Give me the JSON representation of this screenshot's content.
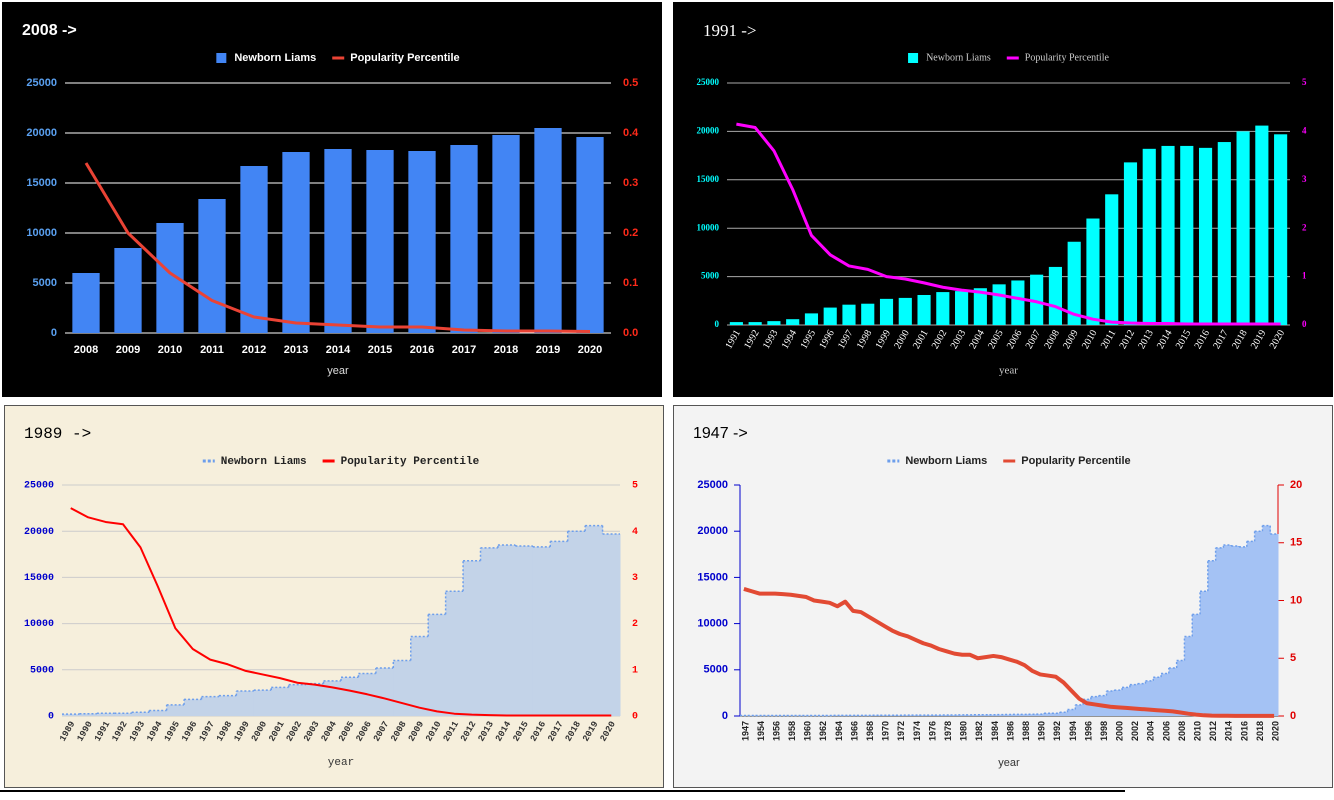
{
  "chart_data": [
    {
      "type": "combo",
      "title": "2008 ->",
      "x_label": "year",
      "categories": [
        "2008",
        "2009",
        "2010",
        "2011",
        "2012",
        "2013",
        "2014",
        "2015",
        "2016",
        "2017",
        "2018",
        "2019",
        "2020"
      ],
      "series": [
        {
          "name": "Newborn Liams",
          "type": "bar",
          "color": "#4285f4",
          "values": [
            6000,
            8500,
            11000,
            13400,
            16700,
            18100,
            18400,
            18300,
            18200,
            18800,
            19800,
            20500,
            19600
          ]
        },
        {
          "name": "Popularity Percentile",
          "type": "line",
          "axis": "y2",
          "color": "#ea4335",
          "values": [
            0.34,
            0.2,
            0.12,
            0.065,
            0.032,
            0.02,
            0.016,
            0.012,
            0.012,
            0.006,
            0.004,
            0.004,
            0.003
          ]
        }
      ],
      "ylim": [
        0,
        25000
      ],
      "yticks": [
        0,
        5000,
        10000,
        15000,
        20000,
        25000
      ],
      "y2lim": [
        0,
        0.5
      ],
      "y2ticks": [
        {
          "value": 0,
          "label": "0.0"
        },
        0.1,
        0.2,
        0.3,
        0.4,
        0.5
      ],
      "grid": true,
      "legend": "top"
    },
    {
      "type": "combo",
      "title": "1991 ->",
      "x_label": "year",
      "categories": [
        "1991",
        "1992",
        "1993",
        "1994",
        "1995",
        "1996",
        "1997",
        "1998",
        "1999",
        "2000",
        "2001",
        "2002",
        "2003",
        "2004",
        "2005",
        "2006",
        "2007",
        "2008",
        "2009",
        "2010",
        "2011",
        "2012",
        "2013",
        "2014",
        "2015",
        "2016",
        "2017",
        "2018",
        "2019",
        "2020"
      ],
      "series": [
        {
          "name": "Newborn Liams",
          "type": "bar",
          "color": "#00ffff",
          "values": [
            300,
            300,
            400,
            600,
            1200,
            1800,
            2100,
            2200,
            2700,
            2800,
            3100,
            3400,
            3500,
            3800,
            4200,
            4600,
            5200,
            6000,
            8600,
            11000,
            13500,
            16800,
            18200,
            18500,
            18500,
            18300,
            18900,
            20000,
            20600,
            19700
          ]
        },
        {
          "name": "Popularity Percentile",
          "type": "line",
          "axis": "y2",
          "color": "#ff00ff",
          "values": [
            4.15,
            4.08,
            3.6,
            2.8,
            1.85,
            1.45,
            1.22,
            1.15,
            1.0,
            0.95,
            0.87,
            0.78,
            0.72,
            0.68,
            0.62,
            0.55,
            0.48,
            0.38,
            0.22,
            0.12,
            0.06,
            0.04,
            0.03,
            0.03,
            0.02,
            0.02,
            0.02,
            0.02,
            0.02,
            0.02
          ]
        }
      ],
      "ylim": [
        0,
        25000
      ],
      "yticks": [
        0,
        5000,
        10000,
        15000,
        20000,
        25000
      ],
      "y2lim": [
        0,
        5
      ],
      "y2ticks": [
        0,
        1,
        2,
        3,
        4,
        5
      ],
      "grid": true,
      "legend": "top"
    },
    {
      "type": "combo",
      "title": "1989 ->",
      "x_label": "year",
      "categories": [
        "1989",
        "1990",
        "1991",
        "1992",
        "1993",
        "1994",
        "1995",
        "1996",
        "1997",
        "1998",
        "1999",
        "2000",
        "2001",
        "2002",
        "2003",
        "2004",
        "2005",
        "2006",
        "2007",
        "2008",
        "2009",
        "2010",
        "2011",
        "2012",
        "2013",
        "2014",
        "2015",
        "2016",
        "2017",
        "2018",
        "2019",
        "2020"
      ],
      "series": [
        {
          "name": "Newborn Liams",
          "type": "steparea",
          "color": "#c3d3e8",
          "line_color": "#6d9eeb",
          "values": [
            200,
            250,
            300,
            300,
            400,
            600,
            1200,
            1800,
            2100,
            2200,
            2700,
            2800,
            3100,
            3400,
            3500,
            3800,
            4200,
            4600,
            5200,
            6000,
            8600,
            11000,
            13500,
            16800,
            18200,
            18500,
            18400,
            18300,
            18900,
            20000,
            20600,
            19700
          ]
        },
        {
          "name": "Popularity Percentile",
          "type": "line",
          "axis": "y2",
          "color": "#ff0000",
          "values": [
            4.5,
            4.3,
            4.2,
            4.15,
            3.65,
            2.8,
            1.9,
            1.45,
            1.22,
            1.12,
            0.98,
            0.9,
            0.82,
            0.72,
            0.68,
            0.62,
            0.55,
            0.47,
            0.38,
            0.28,
            0.18,
            0.1,
            0.05,
            0.03,
            0.02,
            0.01,
            0.01,
            0.01,
            0.01,
            0.01,
            0.01,
            0.01
          ]
        }
      ],
      "ylim": [
        0,
        25000
      ],
      "yticks": [
        0,
        5000,
        10000,
        15000,
        20000,
        25000
      ],
      "y2lim": [
        0,
        5
      ],
      "y2ticks": [
        0,
        1,
        2,
        3,
        4,
        5
      ],
      "grid": true,
      "legend": "top"
    },
    {
      "type": "combo",
      "title": "1947 ->",
      "x_label": "year",
      "categories": [
        "1947",
        null,
        "1954",
        null,
        "1956",
        null,
        "1958",
        null,
        "1960",
        null,
        "1962",
        null,
        "1964",
        null,
        "1966",
        null,
        "1968",
        null,
        "1970",
        null,
        "1972",
        null,
        "1974",
        null,
        "1976",
        null,
        "1978",
        null,
        "1980",
        null,
        "1982",
        null,
        "1984",
        null,
        "1986",
        null,
        "1988",
        null,
        "1990",
        null,
        "1992",
        null,
        "1994",
        null,
        "1996",
        null,
        "1998",
        null,
        "2000",
        null,
        "2002",
        null,
        "2004",
        null,
        "2006",
        null,
        "2008",
        null,
        "2010",
        null,
        "2012",
        null,
        "2014",
        null,
        "2016",
        null,
        "2018",
        null,
        "2020"
      ],
      "series": [
        {
          "name": "Newborn Liams",
          "type": "steparea",
          "color": "#a4c2f4",
          "line_color": "#6d9eeb",
          "values": [
            50,
            50,
            50,
            50,
            50,
            50,
            50,
            50,
            60,
            60,
            60,
            60,
            70,
            70,
            70,
            70,
            70,
            80,
            80,
            80,
            80,
            90,
            90,
            90,
            100,
            100,
            110,
            110,
            120,
            120,
            130,
            130,
            140,
            150,
            160,
            170,
            180,
            190,
            200,
            300,
            300,
            400,
            700,
            1200,
            1800,
            2100,
            2200,
            2700,
            2800,
            3100,
            3400,
            3500,
            3800,
            4200,
            4600,
            5200,
            6000,
            8600,
            11000,
            13500,
            16800,
            18200,
            18500,
            18400,
            18300,
            18900,
            20000,
            20600,
            19700
          ]
        },
        {
          "name": "Popularity Percentile",
          "type": "line",
          "axis": "y2",
          "color": "#e24a33",
          "values": [
            11.0,
            10.8,
            10.6,
            10.6,
            10.6,
            10.55,
            10.5,
            10.4,
            10.3,
            10.0,
            9.9,
            9.8,
            9.5,
            9.9,
            9.1,
            9.0,
            8.6,
            8.2,
            7.8,
            7.4,
            7.1,
            6.9,
            6.6,
            6.3,
            6.1,
            5.8,
            5.6,
            5.4,
            5.3,
            5.3,
            5.0,
            5.1,
            5.2,
            5.1,
            4.9,
            4.7,
            4.4,
            3.9,
            3.6,
            3.5,
            3.4,
            2.9,
            2.2,
            1.5,
            1.1,
            1.0,
            0.9,
            0.8,
            0.75,
            0.7,
            0.65,
            0.6,
            0.55,
            0.5,
            0.45,
            0.4,
            0.3,
            0.2,
            0.12,
            0.06,
            0.03,
            0.02,
            0.02,
            0.01,
            0.01,
            0.01,
            0.01,
            0.01,
            0.01
          ]
        }
      ],
      "ylim": [
        0,
        25000
      ],
      "yticks": [
        0,
        5000,
        10000,
        15000,
        20000,
        25000
      ],
      "y2lim": [
        0,
        20
      ],
      "y2ticks": [
        0,
        5,
        10,
        15,
        20
      ],
      "grid": false,
      "legend": "top"
    }
  ]
}
